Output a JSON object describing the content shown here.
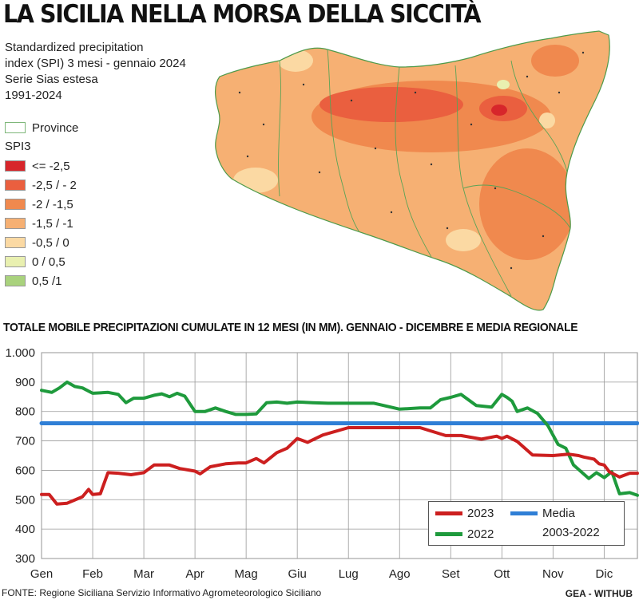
{
  "headline": "LA SICILIA NELLA MORSA DELLA SICCITÀ",
  "map_panel": {
    "subtitle_lines": [
      "Standardized precipitation",
      "index (SPI) 3 mesi - gennaio 2024",
      "Serie Sias estesa",
      "1991-2024"
    ],
    "province_label": "Province",
    "scale_title": "SPI3",
    "classes": [
      {
        "label": "<= -2,5",
        "color": "#d7262b"
      },
      {
        "label": "-2,5 / - 2",
        "color": "#ea5f3f"
      },
      {
        "label": "-2 / -1,5",
        "color": "#f0894e"
      },
      {
        "label": "-1,5 / -1",
        "color": "#f6b073"
      },
      {
        "label": "-0,5 / 0",
        "color": "#fbd9a3"
      },
      {
        "label": "0 / 0,5",
        "color": "#e9f0b0"
      },
      {
        "label": "0,5 /1",
        "color": "#a9d27d"
      }
    ]
  },
  "chart_title": "TOTALE MOBILE PRECIPITAZIONI CUMULATE IN 12 MESI (IN MM). GENNAIO - DICEMBRE E MEDIA REGIONALE",
  "chart_data": {
    "type": "line",
    "title": "TOTALE MOBILE PRECIPITAZIONI CUMULATE IN 12 MESI (IN MM). GENNAIO - DICEMBRE E MEDIA REGIONALE",
    "categories": [
      "Gen",
      "Feb",
      "Mar",
      "Apr",
      "Mag",
      "Giu",
      "Lug",
      "Ago",
      "Set",
      "Ott",
      "Nov",
      "Dic"
    ],
    "ylim": [
      300,
      1000
    ],
    "ytick_labels": [
      "1.000",
      "900",
      "800",
      "700",
      "600",
      "500",
      "400",
      "300"
    ],
    "ytick_values": [
      1000,
      900,
      800,
      700,
      600,
      500,
      400,
      300
    ],
    "grid": true,
    "legend_position": "bottom-right",
    "series": [
      {
        "name": "2023",
        "color": "#cc1f1f",
        "x": [
          0,
          0.15,
          0.3,
          0.5,
          0.8,
          0.92,
          1.0,
          1.15,
          1.3,
          1.5,
          1.75,
          2.0,
          2.2,
          2.5,
          2.7,
          2.9,
          3.0,
          3.1,
          3.3,
          3.6,
          3.85,
          4.0,
          4.2,
          4.35,
          4.6,
          4.8,
          5.0,
          5.2,
          5.5,
          6.0,
          6.5,
          7.0,
          7.4,
          7.9,
          8.2,
          8.6,
          8.9,
          9.0,
          9.1,
          9.3,
          9.6,
          10.0,
          10.3,
          10.5,
          10.6,
          10.8,
          10.9,
          11.0,
          11.1,
          11.3,
          11.5,
          11.65
        ],
        "values": [
          518,
          518,
          485,
          488,
          510,
          535,
          518,
          520,
          592,
          590,
          585,
          592,
          618,
          618,
          606,
          600,
          597,
          588,
          612,
          622,
          625,
          625,
          640,
          625,
          660,
          675,
          708,
          695,
          720,
          745,
          745,
          745,
          745,
          718,
          718,
          706,
          716,
          708,
          716,
          698,
          652,
          650,
          655,
          650,
          645,
          638,
          622,
          618,
          595,
          577,
          590,
          590
        ]
      },
      {
        "name": "2022",
        "color": "#1e9a3c",
        "x": [
          0,
          0.2,
          0.35,
          0.5,
          0.65,
          0.8,
          1.0,
          1.3,
          1.5,
          1.65,
          1.8,
          2.0,
          2.2,
          2.35,
          2.5,
          2.65,
          2.8,
          3.0,
          3.2,
          3.4,
          3.6,
          3.8,
          4.0,
          4.2,
          4.4,
          4.6,
          4.8,
          5.0,
          5.3,
          5.6,
          6.0,
          6.5,
          7.0,
          7.4,
          7.6,
          7.8,
          8.0,
          8.2,
          8.5,
          8.8,
          9.0,
          9.1,
          9.2,
          9.3,
          9.5,
          9.7,
          9.9,
          10.1,
          10.25,
          10.4,
          10.55,
          10.7,
          10.85,
          11.0,
          11.15,
          11.3,
          11.5,
          11.65
        ],
        "values": [
          872,
          865,
          880,
          900,
          885,
          880,
          862,
          865,
          858,
          830,
          845,
          845,
          855,
          860,
          850,
          862,
          852,
          800,
          800,
          812,
          800,
          790,
          790,
          792,
          830,
          832,
          828,
          832,
          830,
          828,
          828,
          828,
          808,
          812,
          812,
          840,
          848,
          858,
          820,
          815,
          858,
          848,
          835,
          800,
          812,
          793,
          752,
          688,
          675,
          618,
          595,
          572,
          592,
          575,
          595,
          520,
          524,
          515
        ]
      },
      {
        "name": "Media\n2003-2022",
        "color": "#2f7fd6",
        "x": [
          0,
          11.65
        ],
        "values": [
          760,
          760
        ]
      }
    ]
  },
  "chart_legend": {
    "series_2023": "2023",
    "series_2022": "2022",
    "media_line1": "Media",
    "media_line2": "2003-2022"
  },
  "footer": {
    "source": "FONTE: Regione Siciliana Servizio Informativo Agrometeorologico Siciliano",
    "credit": "GEA - WITHUB"
  }
}
